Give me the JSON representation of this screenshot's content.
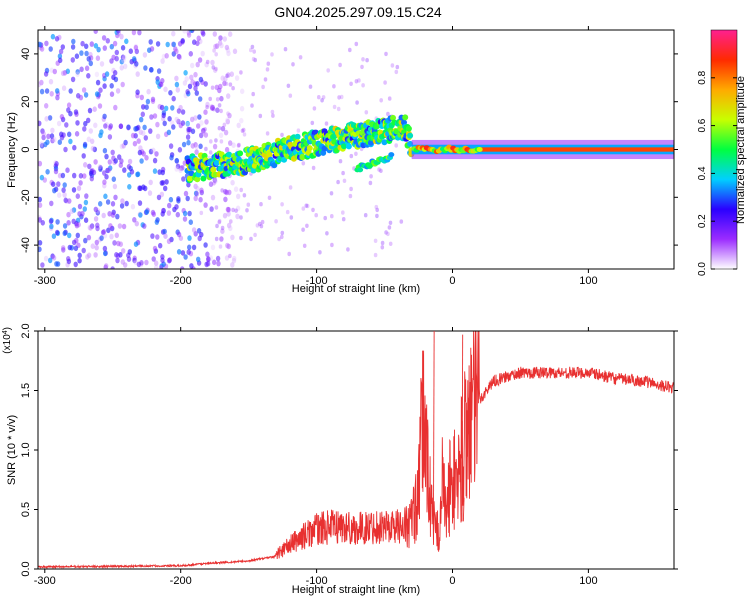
{
  "title": "GN04.2025.297.09.15.C24",
  "chart_data": [
    {
      "type": "heatmap",
      "xlabel": "Height of straight line (km)",
      "ylabel": "Frequency (Hz)",
      "xlim": [
        -305,
        163
      ],
      "ylim": [
        -50,
        50
      ],
      "x_ticks": [
        -300,
        -200,
        -100,
        0,
        100
      ],
      "y_ticks": [
        -40,
        -20,
        0,
        20,
        40
      ],
      "grid": false,
      "colorbar": {
        "label": "Normalized spectral amplitude",
        "range": [
          0,
          1
        ],
        "ticks": [
          0.0,
          0.2,
          0.4,
          0.6,
          0.8
        ],
        "colors": [
          "#ffffff",
          "#9b2cff",
          "#2a00ff",
          "#00d0ff",
          "#00ff40",
          "#c8ff00",
          "#ffaa00",
          "#ff2a00",
          "#ff2090"
        ]
      },
      "features": [
        {
          "name": "noise",
          "x_range": [
            -305,
            -185
          ],
          "y_range": [
            -50,
            50
          ],
          "amplitude": 0.15
        },
        {
          "name": "signal",
          "points": [
            [
              -195,
              -8
            ],
            [
              -160,
              -6
            ],
            [
              -120,
              0
            ],
            [
              -90,
              4
            ],
            [
              -70,
              6
            ],
            [
              -50,
              8
            ],
            [
              -35,
              9
            ],
            [
              -30,
              0
            ],
            [
              0,
              -1
            ],
            [
              163,
              0
            ]
          ],
          "amplitude": 0.5
        },
        {
          "name": "branch",
          "points": [
            [
              -70,
              -8
            ],
            [
              -55,
              -5
            ],
            [
              -45,
              -3
            ]
          ],
          "amplitude": 0.35
        },
        {
          "name": "carrier",
          "x_range": [
            -25,
            163
          ],
          "y": 0,
          "amplitude": 0.85
        }
      ]
    },
    {
      "type": "line",
      "xlabel": "Height of straight line (km)",
      "ylabel": "SNR (10 * v/v)",
      "y_multiplier": "(x10^4)",
      "xlim": [
        -305,
        163
      ],
      "ylim": [
        0,
        2.0
      ],
      "x_ticks": [
        -300,
        -200,
        -100,
        0,
        100
      ],
      "y_ticks": [
        0.0,
        0.5,
        1.0,
        1.5,
        2.0
      ],
      "grid": false,
      "series": [
        {
          "color": "#e83030",
          "x": [
            -305,
            -250,
            -200,
            -180,
            -150,
            -130,
            -115,
            -100,
            -85,
            -70,
            -55,
            -45,
            -38,
            -30,
            -25,
            -22,
            -18,
            -15,
            -10,
            -7,
            -5,
            -2,
            5,
            10,
            15,
            22,
            30,
            50,
            70,
            100,
            120,
            140,
            163
          ],
          "y": [
            0.01,
            0.015,
            0.02,
            0.04,
            0.06,
            0.1,
            0.2,
            0.28,
            0.3,
            0.28,
            0.3,
            0.3,
            0.3,
            0.4,
            0.6,
            1.3,
            0.9,
            0.4,
            0.3,
            0.8,
            0.4,
            0.7,
            0.8,
            1.2,
            1.35,
            1.45,
            1.58,
            1.65,
            1.65,
            1.65,
            1.6,
            1.58,
            1.52
          ]
        }
      ]
    }
  ]
}
